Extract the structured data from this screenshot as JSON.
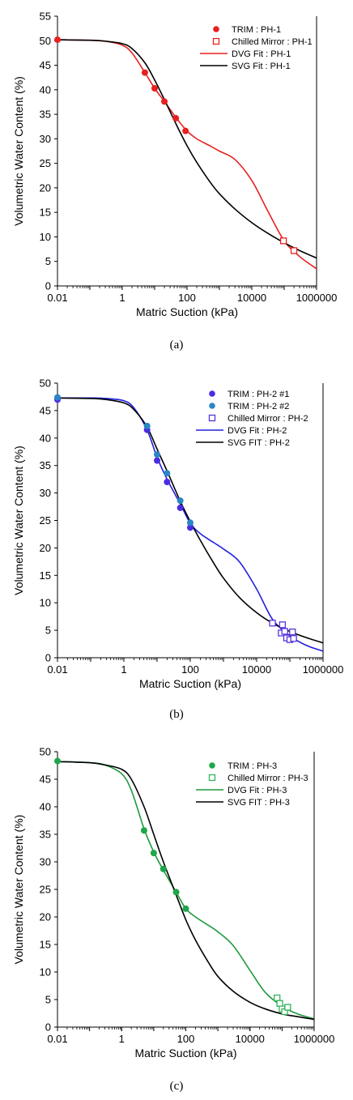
{
  "chart_data": [
    {
      "type": "scatter",
      "caption": "(a)",
      "xlabel": "Matric Suction (kPa)",
      "ylabel": "Volumetric Water Content (%)",
      "xscale": "log",
      "xlim": [
        0.01,
        1000000
      ],
      "ylim": [
        0,
        55
      ],
      "x_ticks": [
        "0.01",
        "1",
        "100",
        "10000",
        "1000000"
      ],
      "y_ticks": [
        "0",
        "5",
        "10",
        "15",
        "20",
        "25",
        "30",
        "35",
        "40",
        "45",
        "50",
        "55"
      ],
      "grid": false,
      "legend_position": "top-right",
      "series": [
        {
          "name": "TRIM : PH-1",
          "kind": "marker",
          "marker": "filled-circle",
          "color": "#e8201f",
          "x": [
            0.01,
            5,
            10,
            20,
            45,
            90
          ],
          "y": [
            50.2,
            43.5,
            40.3,
            37.6,
            34.2,
            31.6
          ]
        },
        {
          "name": "Chilled Mirror : PH-1",
          "kind": "marker",
          "marker": "open-square",
          "color": "#e8201f",
          "x": [
            95000,
            200000
          ],
          "y": [
            9.2,
            7.2
          ]
        },
        {
          "name": "DVG Fit : PH-1",
          "kind": "line",
          "color": "#e8201f",
          "x": [
            0.01,
            0.1,
            0.3,
            1,
            2,
            5,
            10,
            20,
            50,
            100,
            200,
            500,
            1000,
            3000,
            10000,
            30000,
            100000,
            300000,
            1000000
          ],
          "y": [
            50.2,
            50.1,
            49.9,
            49.1,
            47.5,
            43.5,
            40.3,
            37.6,
            34.0,
            31.6,
            30.0,
            28.6,
            27.5,
            25.8,
            21.5,
            15.5,
            9.2,
            6.0,
            3.5
          ]
        },
        {
          "name": "SVG Fit : PH-1",
          "kind": "line",
          "color": "#000000",
          "x": [
            0.01,
            0.1,
            0.3,
            1,
            2,
            5,
            10,
            20,
            50,
            100,
            200,
            500,
            1000,
            3000,
            10000,
            30000,
            100000,
            300000,
            1000000
          ],
          "y": [
            50.2,
            50.1,
            49.9,
            49.4,
            48.4,
            45.5,
            42.0,
            38.0,
            32.5,
            28.6,
            25.2,
            21.3,
            18.8,
            15.7,
            12.9,
            10.8,
            8.8,
            7.2,
            5.7
          ]
        }
      ]
    },
    {
      "type": "scatter",
      "caption": "(b)",
      "xlabel": "Matric Suction (kPa)",
      "ylabel": "Volumetric Water Content (%)",
      "xscale": "log",
      "xlim": [
        0.01,
        1000000
      ],
      "ylim": [
        0,
        50
      ],
      "x_ticks": [
        "0.01",
        "1",
        "100",
        "10000",
        "1000000"
      ],
      "y_ticks": [
        "0",
        "5",
        "10",
        "15",
        "20",
        "25",
        "30",
        "35",
        "40",
        "45",
        "50"
      ],
      "grid": false,
      "legend_position": "top-right",
      "series": [
        {
          "name": "TRIM : PH-2 #1",
          "kind": "marker",
          "marker": "filled-circle",
          "color": "#4b2be3",
          "x": [
            0.01,
            5,
            10,
            20,
            50,
            100
          ],
          "y": [
            47.0,
            41.5,
            35.9,
            32.0,
            27.3,
            23.7
          ]
        },
        {
          "name": "TRIM : PH-2 #2",
          "kind": "marker",
          "marker": "filled-circle",
          "color": "#2a86c4",
          "x": [
            0.01,
            5,
            10,
            20,
            50,
            100
          ],
          "y": [
            47.4,
            42.2,
            37.0,
            33.6,
            28.6,
            24.6
          ]
        },
        {
          "name": "Chilled Mirror : PH-2",
          "kind": "marker",
          "marker": "open-square",
          "color": "#5a35d8",
          "x": [
            30000,
            55000,
            60000,
            70000,
            80000,
            100000,
            120000,
            130000
          ],
          "y": [
            6.3,
            4.5,
            6.0,
            4.8,
            3.6,
            3.3,
            4.7,
            3.5
          ]
        },
        {
          "name": "DVG Fit : PH-2",
          "kind": "line",
          "color": "#2020e0",
          "x": [
            0.01,
            0.1,
            0.3,
            1,
            2,
            5,
            10,
            20,
            50,
            100,
            200,
            500,
            1000,
            3000,
            10000,
            30000,
            100000,
            300000,
            1000000
          ],
          "y": [
            47.3,
            47.3,
            47.2,
            46.8,
            45.5,
            41.5,
            36.5,
            32.5,
            28.0,
            24.5,
            22.6,
            21.0,
            19.8,
            17.5,
            12.5,
            7.0,
            4.0,
            2.3,
            1.2
          ]
        },
        {
          "name": "SVG FIT : PH-2",
          "kind": "line",
          "color": "#000000",
          "x": [
            0.01,
            0.1,
            0.3,
            1,
            2,
            5,
            10,
            20,
            50,
            100,
            200,
            500,
            1000,
            3000,
            10000,
            30000,
            100000,
            300000,
            1000000
          ],
          "y": [
            47.3,
            47.2,
            47.0,
            46.4,
            45.2,
            42.0,
            38.0,
            34.0,
            28.5,
            24.8,
            21.4,
            17.3,
            14.5,
            11.0,
            8.2,
            6.3,
            4.8,
            3.7,
            2.7
          ]
        }
      ]
    },
    {
      "type": "scatter",
      "caption": "(c)",
      "xlabel": "Matric Suction (kPa)",
      "ylabel": "Volumetric Water Content (%)",
      "xscale": "log",
      "xlim": [
        0.01,
        1000000
      ],
      "ylim": [
        0,
        50
      ],
      "x_ticks": [
        "0.01",
        "1",
        "100",
        "10000",
        "1000000"
      ],
      "y_ticks": [
        "0",
        "5",
        "10",
        "15",
        "20",
        "25",
        "30",
        "35",
        "40",
        "45",
        "50"
      ],
      "grid": false,
      "legend_position": "top-right",
      "series": [
        {
          "name": "TRIM : PH-3",
          "kind": "marker",
          "marker": "filled-circle",
          "color": "#1ea64a",
          "x": [
            0.01,
            5,
            10,
            20,
            50,
            100
          ],
          "y": [
            48.3,
            35.7,
            31.6,
            28.7,
            24.5,
            21.5
          ]
        },
        {
          "name": "Chilled Mirror : PH-3",
          "kind": "marker",
          "marker": "open-square",
          "color": "#2fb45a",
          "x": [
            70000,
            85000,
            100000,
            120000,
            150000
          ],
          "y": [
            5.3,
            4.3,
            3.3,
            2.8,
            3.6
          ]
        },
        {
          "name": "DVG Fit : PH-3",
          "kind": "line",
          "color": "#1e9a3c",
          "x": [
            0.01,
            0.1,
            0.3,
            1,
            2,
            5,
            10,
            20,
            50,
            100,
            200,
            500,
            1000,
            3000,
            10000,
            30000,
            100000,
            300000,
            1000000
          ],
          "y": [
            48.2,
            48.0,
            47.6,
            46.0,
            43.0,
            36.0,
            31.8,
            28.5,
            24.5,
            21.5,
            20.0,
            18.5,
            17.3,
            14.8,
            10.3,
            6.3,
            3.8,
            2.4,
            1.5
          ]
        },
        {
          "name": "SVG FIT : PH-3",
          "kind": "line",
          "color": "#000000",
          "x": [
            0.01,
            0.1,
            0.3,
            1,
            2,
            5,
            10,
            20,
            50,
            100,
            200,
            500,
            1000,
            3000,
            10000,
            30000,
            100000,
            300000,
            1000000
          ],
          "y": [
            48.2,
            48.0,
            47.6,
            46.8,
            45.0,
            40.0,
            35.0,
            30.0,
            24.0,
            19.5,
            15.8,
            11.8,
            9.2,
            6.5,
            4.5,
            3.3,
            2.4,
            1.9,
            1.4
          ]
        }
      ]
    }
  ]
}
